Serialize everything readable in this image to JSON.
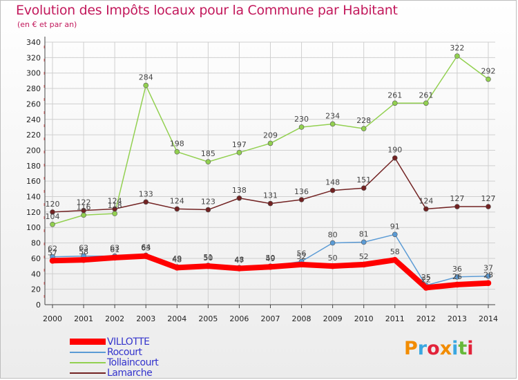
{
  "title": "Evolution des Impôts locaux pour la Commune par Habitant",
  "subtitle": "(en € et par an)",
  "brand": {
    "letters": [
      "P",
      "r",
      "o",
      "x",
      "i",
      "t",
      "i"
    ],
    "colors": [
      "#f28c00",
      "#3aa7e0",
      "#e2233a",
      "#f28c00",
      "#3aa7e0",
      "#67b83a",
      "#e2233a"
    ]
  },
  "colors": {
    "VILLOTTE": "#ff0000",
    "Rocourt": "#5b9bd5",
    "Tollaincourt": "#92d050",
    "Lamarche": "#722222",
    "axis_text": "#222222",
    "grid": "#cfcfcf"
  },
  "chart_data": {
    "type": "line",
    "title": "Evolution des Impôts locaux pour la Commune par Habitant",
    "subtitle": "(en € et par an)",
    "x": [
      "2000",
      "2001",
      "2002",
      "2003",
      "2004",
      "2005",
      "2006",
      "2007",
      "2008",
      "2009",
      "2010",
      "2011",
      "2012",
      "2013",
      "2014"
    ],
    "ylim": [
      0,
      340
    ],
    "yticks": [
      0,
      20,
      40,
      60,
      80,
      100,
      120,
      140,
      160,
      180,
      200,
      220,
      240,
      260,
      280,
      300,
      320,
      340
    ],
    "grid": true,
    "legend": "bottom-left",
    "series": [
      {
        "name": "VILLOTTE",
        "values": [
          57,
          58,
          61,
          63,
          48,
          50,
          47,
          49,
          52,
          50,
          52,
          58,
          22,
          26,
          28
        ],
        "labels": [
          "57",
          "58",
          "61",
          "63",
          "48",
          "50",
          "47",
          "49",
          "52",
          "50",
          "52",
          "58",
          "22",
          "26",
          "28"
        ]
      },
      {
        "name": "Rocourt",
        "values": [
          62,
          63,
          63,
          64,
          49,
          51,
          48,
          50,
          56,
          80,
          81,
          91,
          25,
          36,
          37
        ],
        "labels": [
          "62",
          "63",
          "63",
          "64",
          "49",
          "51",
          "48",
          "50",
          "56",
          "80",
          "81",
          "91",
          "25",
          "36",
          "37"
        ]
      },
      {
        "name": "Tollaincourt",
        "values": [
          104,
          116,
          118,
          284,
          198,
          185,
          197,
          209,
          230,
          234,
          228,
          261,
          261,
          322,
          292
        ],
        "labels": [
          "104",
          "116",
          "118",
          "284",
          "198",
          "185",
          "197",
          "209",
          "230",
          "234",
          "228",
          "261",
          "261",
          "322",
          "292"
        ]
      },
      {
        "name": "Lamarche",
        "values": [
          120,
          122,
          124,
          133,
          124,
          123,
          138,
          131,
          136,
          148,
          151,
          190,
          124,
          127,
          127
        ],
        "labels": [
          "120",
          "122",
          "124",
          "133",
          "124",
          "123",
          "138",
          "131",
          "136",
          "148",
          "151",
          "190",
          "124",
          "127",
          "127"
        ]
      }
    ]
  }
}
